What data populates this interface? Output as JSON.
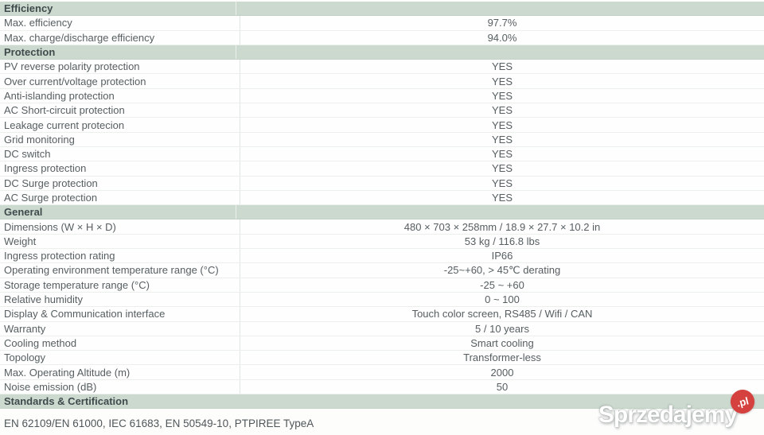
{
  "table": {
    "sections": [
      {
        "title": "Efficiency",
        "rows": [
          {
            "label": "Max. efficiency",
            "value": "97.7%"
          },
          {
            "label": "Max. charge/discharge efficiency",
            "value": "94.0%"
          }
        ]
      },
      {
        "title": "Protection",
        "rows": [
          {
            "label": "PV reverse polarity protection",
            "value": "YES"
          },
          {
            "label": "Over current/voltage protection",
            "value": "YES"
          },
          {
            "label": "Anti-islanding protection",
            "value": "YES"
          },
          {
            "label": "AC Short-circuit protection",
            "value": "YES"
          },
          {
            "label": "Leakage current protecion",
            "value": "YES"
          },
          {
            "label": "Grid monitoring",
            "value": "YES"
          },
          {
            "label": "DC switch",
            "value": "YES"
          },
          {
            "label": "Ingress protection",
            "value": "YES"
          },
          {
            "label": "DC Surge protection",
            "value": "YES"
          },
          {
            "label": "AC Surge protection",
            "value": "YES"
          }
        ]
      },
      {
        "title": "General",
        "rows": [
          {
            "label": "Dimensions (W × H × D)",
            "value": "480 × 703 × 258mm / 18.9 × 27.7 × 10.2 in"
          },
          {
            "label": "Weight",
            "value": "53 kg / 116.8 lbs"
          },
          {
            "label": "Ingress protection rating",
            "value": "IP66"
          },
          {
            "label": "Operating environment temperature range (°C)",
            "value": "-25~+60, > 45℃ derating"
          },
          {
            "label": "Storage temperature range (°C)",
            "value": "-25 ~ +60"
          },
          {
            "label": "Relative humidity",
            "value": "0 ~ 100"
          },
          {
            "label": "Display & Communication interface",
            "value": "Touch color screen, RS485 / Wifi / CAN"
          },
          {
            "label": "Warranty",
            "value": "5 / 10 years"
          },
          {
            "label": "Cooling method",
            "value": "Smart cooling"
          },
          {
            "label": "Topology",
            "value": "Transformer-less"
          },
          {
            "label": "Max. Operating Altitude (m)",
            "value": "2000"
          },
          {
            "label": "Noise emission (dB)",
            "value": "50"
          }
        ]
      },
      {
        "title": "Standards & Certification",
        "rows": []
      }
    ],
    "footer_text": "EN 62109/EN 61000, IEC 61683, EN 50549-10, PTPIREE TypeA"
  },
  "watermark": {
    "brand": "Sprzedajemy",
    "tld": ".pl"
  },
  "colors": {
    "section_header_bg": "#ccd9cf",
    "section_header_text": "#3e4b4c",
    "row_text": "#565e61",
    "row_border": "#ecf0ed",
    "column_divider": "#dfe7e1",
    "watermark_red": "#d5413e"
  }
}
